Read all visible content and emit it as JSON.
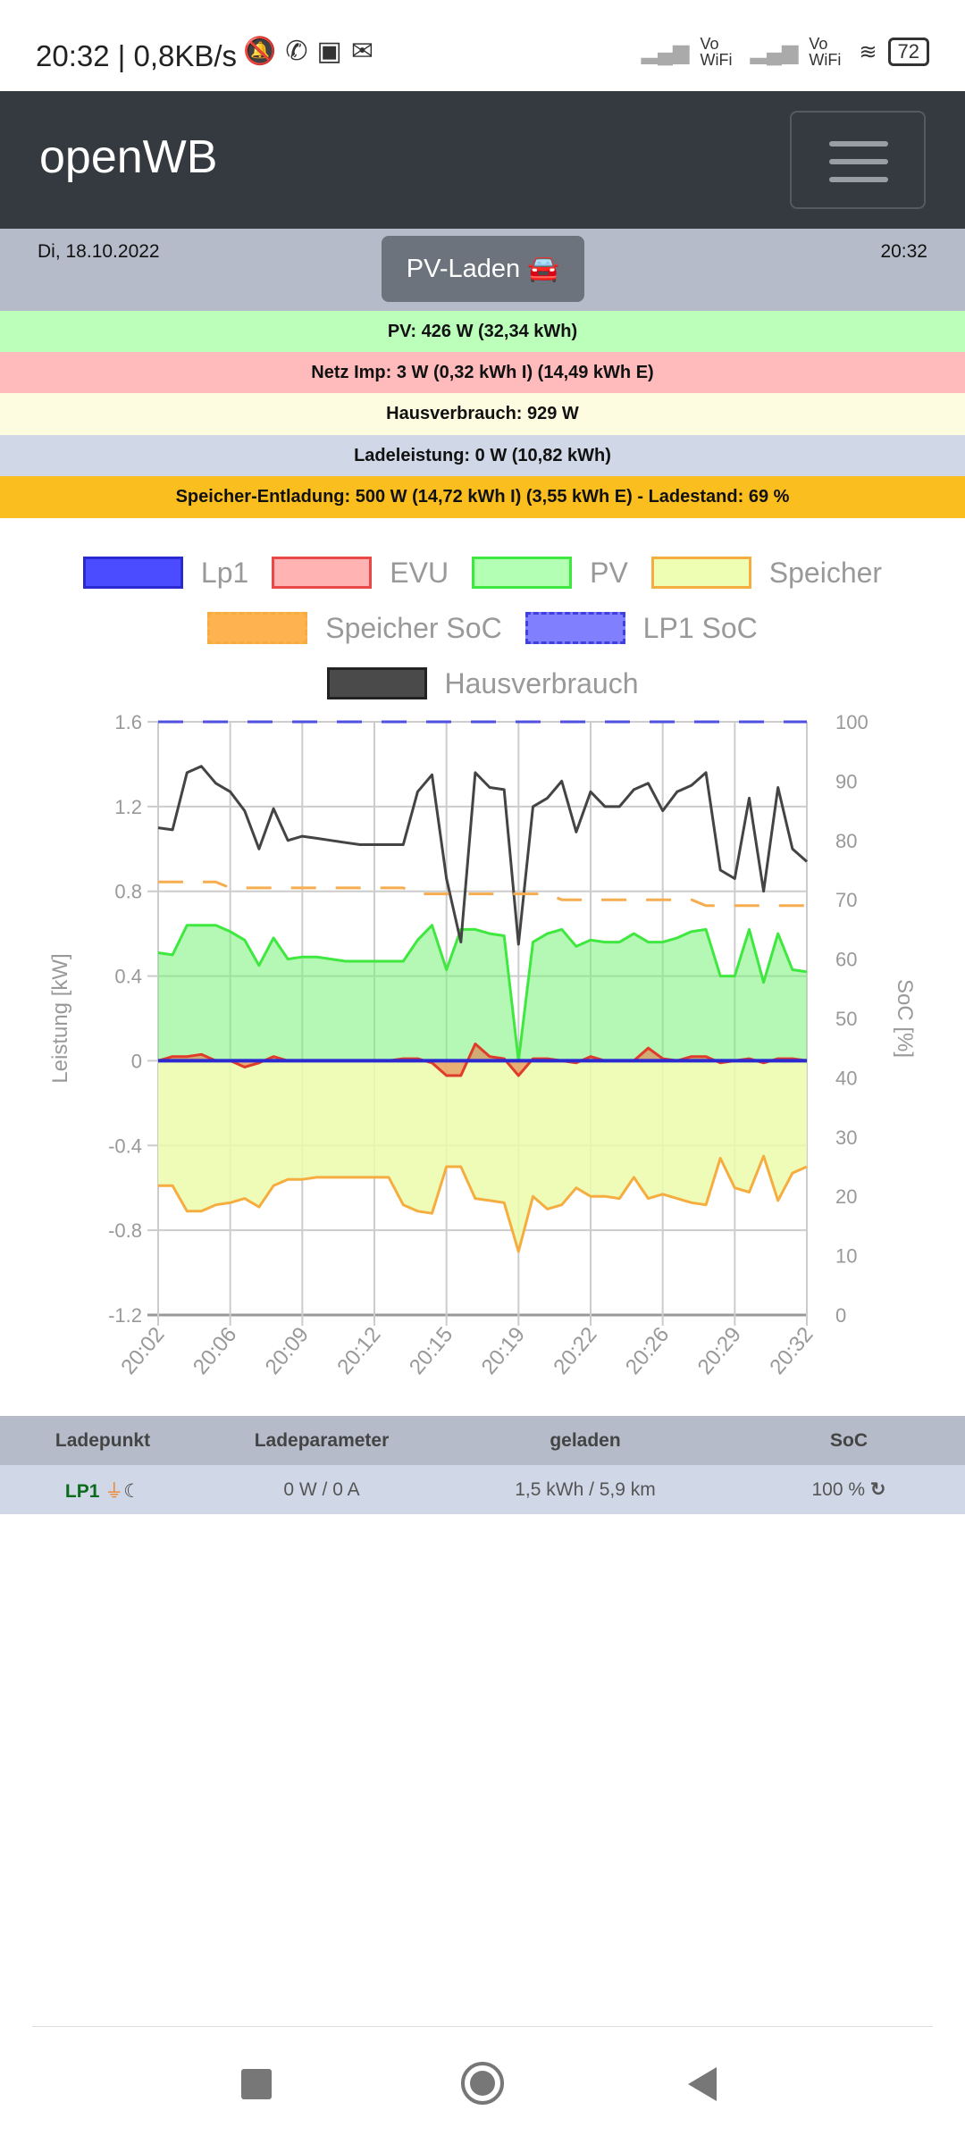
{
  "status_bar": {
    "time": "20:32 | 0,8KB/s",
    "icons": [
      "muted-bell-icon",
      "whatsapp-icon",
      "kaufda-icon",
      "outlook-icon"
    ],
    "net1": "Vo WiFi",
    "net2": "Vo WiFi",
    "battery": "72"
  },
  "header": {
    "brand": "openWB",
    "menu_icon": "hamburger-icon"
  },
  "datebar": {
    "date": "Di, 18.10.2022",
    "time": "20:32",
    "mode_button": "PV-Laden"
  },
  "summary": {
    "pv": {
      "text": "PV: 426 W (32,34 kWh)",
      "color": "#bbffbb"
    },
    "netz": {
      "text": "Netz Imp: 3 W (0,32 kWh I) (14,49 kWh E)",
      "color": "#ffbbbb"
    },
    "haus": {
      "text": "Hausverbrauch: 929 W",
      "color": "#fefce0"
    },
    "lade": {
      "text": "Ladeleistung: 0 W (10,82 kWh)",
      "color": "#d0d8e7"
    },
    "speicher": {
      "text": "Speicher-Entladung: 500 W (14,72 kWh I) (3,55 kWh E) - Ladestand: 69 %",
      "color": "#fbbe1f"
    }
  },
  "chart_data": {
    "type": "line",
    "xlabel": "",
    "ylabel": "Leistung [kW]",
    "y2label": "SoC [%]",
    "ylim": [
      -1.2,
      1.6
    ],
    "y2lim": [
      0,
      100
    ],
    "yticks": [
      "1.6",
      "1.2",
      "0.8",
      "0.4",
      "0",
      "-0.4",
      "-0.8",
      "-1.2"
    ],
    "y2ticks": [
      "100",
      "90",
      "80",
      "70",
      "60",
      "50",
      "40",
      "30",
      "20",
      "10",
      "0"
    ],
    "xticks": [
      "20:02",
      "20:06",
      "20:09",
      "20:12",
      "20:15",
      "20:19",
      "20:22",
      "20:26",
      "20:29",
      "20:32"
    ],
    "legend": [
      "Lp1",
      "EVU",
      "PV",
      "Speicher",
      "Speicher SoC",
      "LP1 SoC",
      "Hausverbrauch"
    ],
    "grid": true,
    "series": [
      {
        "name": "Lp1",
        "axis": "y",
        "color": "#2a2ad0",
        "fill": null,
        "values": [
          0,
          0,
          0,
          0,
          0,
          0,
          0,
          0,
          0,
          0,
          0,
          0,
          0,
          0,
          0,
          0,
          0,
          0,
          0,
          0,
          0,
          0,
          0,
          0,
          0,
          0,
          0,
          0,
          0,
          0,
          0,
          0,
          0,
          0,
          0,
          0,
          0,
          0,
          0,
          0,
          0,
          0,
          0,
          0,
          0,
          0
        ]
      },
      {
        "name": "EVU",
        "axis": "y",
        "color": "#e03c2a",
        "fill": "rgba(230,110,60,0.55)",
        "values": [
          0,
          0.02,
          0.02,
          0.03,
          0,
          0,
          -0.03,
          -0.01,
          0.02,
          0,
          0,
          0,
          0,
          0,
          0,
          0,
          0,
          0.01,
          0.01,
          -0.01,
          -0.07,
          -0.07,
          0.08,
          0.02,
          0.01,
          -0.07,
          0.01,
          0.01,
          0,
          -0.01,
          0.02,
          0,
          0,
          0,
          0.06,
          0.01,
          0,
          0.02,
          0.02,
          -0.01,
          0,
          0.01,
          -0.01,
          0.01,
          0.01,
          0
        ]
      },
      {
        "name": "PV",
        "axis": "y",
        "color": "#3ee83e",
        "fill": "rgba(120,240,120,0.55)",
        "values": [
          0.51,
          0.5,
          0.64,
          0.64,
          0.64,
          0.61,
          0.57,
          0.45,
          0.58,
          0.48,
          0.49,
          0.49,
          0.48,
          0.47,
          0.47,
          0.47,
          0.47,
          0.47,
          0.57,
          0.64,
          0.43,
          0.62,
          0.62,
          0.6,
          0.59,
          0,
          0.56,
          0.6,
          0.62,
          0.54,
          0.57,
          0.56,
          0.56,
          0.6,
          0.56,
          0.56,
          0.58,
          0.61,
          0.62,
          0.4,
          0.4,
          0.62,
          0.37,
          0.6,
          0.43,
          0.42
        ]
      },
      {
        "name": "Speicher",
        "axis": "y",
        "color": "#f5ad40",
        "fill": "rgba(235,252,170,0.85)",
        "values": [
          -0.59,
          -0.59,
          -0.71,
          -0.71,
          -0.68,
          -0.67,
          -0.65,
          -0.69,
          -0.59,
          -0.56,
          -0.56,
          -0.55,
          -0.55,
          -0.55,
          -0.55,
          -0.55,
          -0.55,
          -0.68,
          -0.71,
          -0.72,
          -0.5,
          -0.5,
          -0.65,
          -0.66,
          -0.67,
          -0.9,
          -0.64,
          -0.7,
          -0.68,
          -0.6,
          -0.64,
          -0.64,
          -0.65,
          -0.55,
          -0.65,
          -0.63,
          -0.65,
          -0.67,
          -0.68,
          -0.46,
          -0.6,
          -0.62,
          -0.45,
          -0.66,
          -0.53,
          -0.5
        ]
      },
      {
        "name": "Speicher SoC",
        "axis": "y2",
        "color": "#f5ad50",
        "dashed": true,
        "values": [
          73,
          73,
          73,
          73,
          73,
          72,
          72,
          72,
          72,
          72,
          72,
          72,
          72,
          72,
          72,
          72,
          72,
          72,
          71,
          71,
          71,
          71,
          71,
          71,
          71,
          71,
          71,
          71,
          70,
          70,
          70,
          70,
          70,
          70,
          70,
          70,
          70,
          70,
          69,
          69,
          69,
          69,
          69,
          69,
          69,
          69
        ]
      },
      {
        "name": "LP1 SoC",
        "axis": "y2",
        "color": "#5050e0",
        "dashed": true,
        "values": [
          100,
          100,
          100,
          100,
          100,
          100,
          100,
          100,
          100,
          100,
          100,
          100,
          100,
          100,
          100,
          100,
          100,
          100,
          100,
          100,
          100,
          100,
          100,
          100,
          100,
          100,
          100,
          100,
          100,
          100,
          100,
          100,
          100,
          100,
          100,
          100,
          100,
          100,
          100,
          100,
          100,
          100,
          100,
          100,
          100,
          100
        ]
      },
      {
        "name": "Hausverbrauch",
        "axis": "y",
        "color": "#444444",
        "fill": null,
        "values": [
          1.1,
          1.09,
          1.36,
          1.39,
          1.31,
          1.27,
          1.18,
          1.0,
          1.19,
          1.04,
          1.06,
          1.05,
          1.04,
          1.03,
          1.02,
          1.02,
          1.02,
          1.02,
          1.27,
          1.35,
          0.86,
          0.56,
          1.36,
          1.29,
          1.28,
          0.55,
          1.2,
          1.24,
          1.32,
          1.08,
          1.27,
          1.2,
          1.2,
          1.28,
          1.31,
          1.18,
          1.27,
          1.3,
          1.36,
          0.9,
          0.86,
          1.24,
          0.8,
          1.29,
          1.0,
          0.94
        ]
      }
    ]
  },
  "table": {
    "headers": [
      "Ladepunkt",
      "Ladeparameter",
      "geladen",
      "SoC"
    ],
    "rows": [
      {
        "name": "LP1",
        "params": "0 W / 0 A",
        "charged": "1,5 kWh / 5,9 km",
        "soc": "100 %"
      }
    ]
  },
  "nav": {
    "buttons": [
      "recents",
      "home",
      "back"
    ]
  }
}
